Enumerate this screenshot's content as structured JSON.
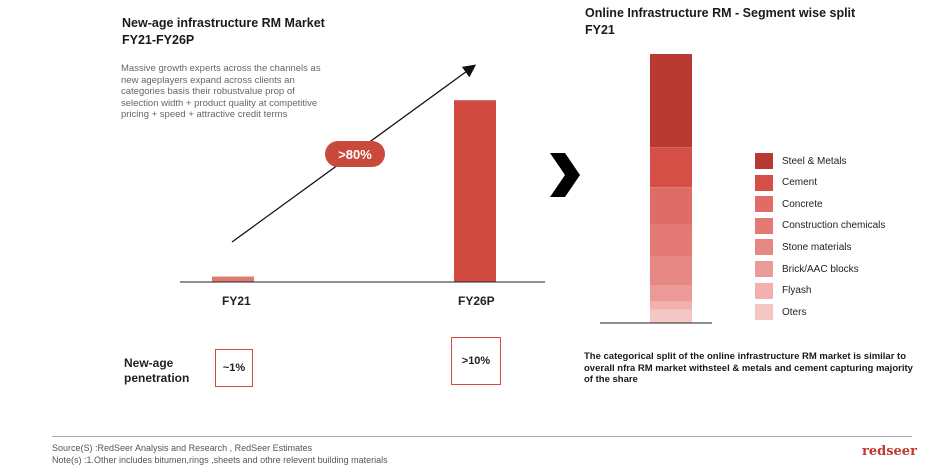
{
  "left": {
    "title_line1": "New-age infrastructure RM Market",
    "title_line2": "FY21-FY26P",
    "description": "Massive growth experts across the channels as new ageplayers expand across clients an categories basis their robustvalue prop of selection width + product quality at competitive pricing + speed + attractive credit terms",
    "growth_badge": ">80%",
    "penetration_label_line1": "New-age",
    "penetration_label_line2": "penetration",
    "penetration": [
      "~1%",
      ">10%"
    ]
  },
  "right": {
    "title_line1": "Online Infrastructure RM - Segment wise split",
    "title_line2": "FY21",
    "note": "The categorical split of the online infrastructure RM market is similar to overall nfra RM market withsteel & metals and cement capturing majority of the share"
  },
  "footer": {
    "source": "Source(S) :RedSeer Analysis and Research , RedSeer Estimates",
    "notes": "Note(s) :1.Other includes bitumen,rings ,sheets and othre relevent building materials",
    "logo": "redseer"
  },
  "colors": {
    "accent": "#c94a3c",
    "bar_fy21": "#e07a70",
    "bar_fy26": "#d04a40"
  },
  "chart_data": [
    {
      "type": "bar",
      "categories": [
        "FY21",
        "FY26P"
      ],
      "values": [
        3,
        100
      ],
      "ylim": [
        0,
        110
      ],
      "annotation": ">80%"
    },
    {
      "type": "bar",
      "stacked": true,
      "categories": [
        "FY21"
      ],
      "series": [
        {
          "name": "Steel & Metals",
          "value": 35,
          "color": "#b83a33"
        },
        {
          "name": "Cement",
          "value": 15,
          "color": "#d54f47"
        },
        {
          "name": "Concrete",
          "value": 14,
          "color": "#df6c66"
        },
        {
          "name": "Construction chemicals",
          "value": 12,
          "color": "#e37a76"
        },
        {
          "name": "Stone materials",
          "value": 11,
          "color": "#e68784"
        },
        {
          "name": "Brick/AAC blocks",
          "value": 6,
          "color": "#eb9a98"
        },
        {
          "name": "Flyash",
          "value": 3,
          "color": "#f0b1af"
        },
        {
          "name": "Oters",
          "value": 5,
          "color": "#f4c7c5"
        }
      ],
      "legend_labels": [
        "Steel & Metals",
        "Cement",
        "Concrete",
        "Construction chemicals",
        "Stone materials",
        "Brick/AAC blocks",
        "Flyash",
        "Oters"
      ]
    }
  ]
}
